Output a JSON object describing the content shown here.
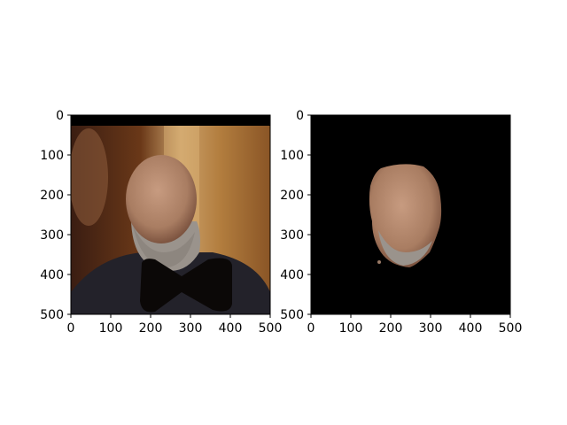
{
  "figure": {
    "background": "#ffffff"
  },
  "chart_data": [
    {
      "type": "image",
      "content": "photo of a bald man with a grey beard in a dark suit and a large black bow tie, warm-lit interior background",
      "xlim": [
        0,
        500
      ],
      "ylim": [
        500,
        0
      ],
      "xticks": [
        0,
        100,
        200,
        300,
        400,
        500
      ],
      "yticks": [
        0,
        100,
        200,
        300,
        400,
        500
      ],
      "xtick_labels": [
        "0",
        "100",
        "200",
        "300",
        "400",
        "500"
      ],
      "ytick_labels": [
        "0",
        "100",
        "200",
        "300",
        "400",
        "500"
      ],
      "colors": {
        "top_band": "#000000",
        "background_wall": "#b07a3a",
        "skin": "#b48a6f",
        "suit": "#23222a",
        "bow_tie": "#0b0807"
      }
    },
    {
      "type": "image",
      "content": "segmented face region of the same man on a black background",
      "xlim": [
        0,
        500
      ],
      "ylim": [
        500,
        0
      ],
      "xticks": [
        0,
        100,
        200,
        300,
        400,
        500
      ],
      "yticks": [
        0,
        100,
        200,
        300,
        400,
        500
      ],
      "xtick_labels": [
        "0",
        "100",
        "200",
        "300",
        "400",
        "500"
      ],
      "ytick_labels": [
        "0",
        "100",
        "200",
        "300",
        "400",
        "500"
      ],
      "colors": {
        "background": "#000000",
        "skin": "#b48a6f",
        "beard": "#9a938c"
      }
    }
  ]
}
